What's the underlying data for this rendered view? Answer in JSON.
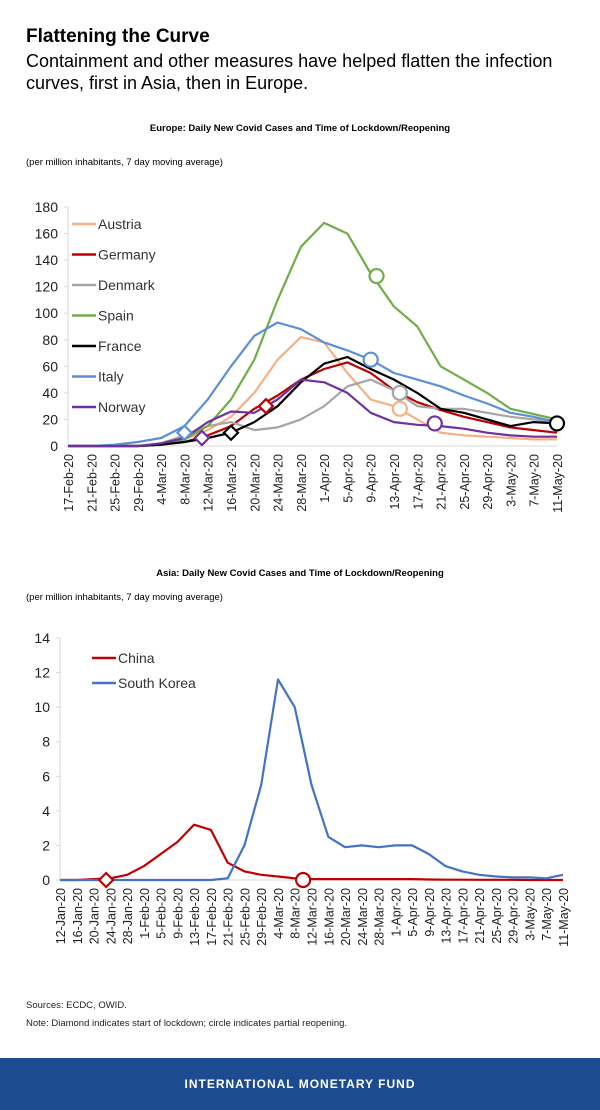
{
  "header": {
    "title": "Flattening the Curve",
    "subtitle": "Containment and other measures have helped flatten the infection curves, first in Asia, then in Europe."
  },
  "chart_data": [
    {
      "type": "line",
      "title": "Europe: Daily New Covid Cases and Time of Lockdown/Reopening",
      "subtitle": "(per million inhabitants, 7 day moving average)",
      "x": [
        "17-Feb-20",
        "21-Feb-20",
        "25-Feb-20",
        "29-Feb-20",
        "4-Mar-20",
        "8-Mar-20",
        "12-Mar-20",
        "16-Mar-20",
        "20-Mar-20",
        "24-Mar-20",
        "28-Mar-20",
        "1-Apr-20",
        "5-Apr-20",
        "9-Apr-20",
        "13-Apr-20",
        "17-Apr-20",
        "21-Apr-20",
        "25-Apr-20",
        "29-Apr-20",
        "3-May-20",
        "7-May-20",
        "11-May-20"
      ],
      "series": [
        {
          "name": "Austria",
          "color": "#f4b183",
          "values": [
            0,
            0,
            0,
            0,
            1,
            5,
            12,
            22,
            40,
            65,
            82,
            78,
            55,
            35,
            30,
            20,
            10,
            8,
            7,
            6,
            5,
            5
          ]
        },
        {
          "name": "Germany",
          "color": "#c00000",
          "values": [
            0,
            0,
            0,
            0,
            1,
            3,
            8,
            15,
            28,
            38,
            50,
            58,
            63,
            55,
            42,
            33,
            27,
            22,
            18,
            14,
            12,
            10
          ]
        },
        {
          "name": "Denmark",
          "color": "#a5a5a5",
          "values": [
            0,
            0,
            0,
            0,
            2,
            8,
            15,
            18,
            12,
            14,
            20,
            30,
            45,
            50,
            42,
            30,
            28,
            28,
            25,
            22,
            20,
            18
          ]
        },
        {
          "name": "Spain",
          "color": "#70ad47",
          "values": [
            0,
            0,
            0,
            0,
            1,
            5,
            15,
            35,
            65,
            110,
            150,
            168,
            160,
            130,
            105,
            90,
            60,
            50,
            40,
            28,
            24,
            20
          ]
        },
        {
          "name": "France",
          "color": "#000000",
          "values": [
            0,
            0,
            0,
            0,
            1,
            3,
            6,
            10,
            18,
            30,
            48,
            62,
            67,
            58,
            50,
            40,
            28,
            25,
            20,
            15,
            18,
            17
          ]
        },
        {
          "name": "Italy",
          "color": "#5b8fd6",
          "values": [
            0,
            0,
            1,
            3,
            6,
            15,
            35,
            60,
            83,
            93,
            88,
            78,
            72,
            65,
            55,
            50,
            45,
            38,
            32,
            25,
            22,
            18
          ]
        },
        {
          "name": "Norway",
          "color": "#7030a0",
          "values": [
            0,
            0,
            0,
            0,
            2,
            6,
            18,
            26,
            25,
            35,
            50,
            48,
            40,
            25,
            18,
            16,
            15,
            13,
            10,
            8,
            7,
            7
          ]
        }
      ],
      "markers": [
        {
          "series": 5,
          "x": "8-Mar-20",
          "value": 10,
          "shape": "diamond"
        },
        {
          "series": 6,
          "x": "11-Mar-20",
          "value": 6,
          "shape": "diamond"
        },
        {
          "series": 4,
          "x": "16-Mar-20",
          "value": 10,
          "shape": "diamond"
        },
        {
          "series": 1,
          "x": "22-Mar-20",
          "value": 30,
          "shape": "diamond"
        },
        {
          "series": 3,
          "x": "10-Apr-20",
          "value": 128,
          "shape": "circle"
        },
        {
          "series": 5,
          "x": "9-Apr-20",
          "value": 65,
          "shape": "circle"
        },
        {
          "series": 2,
          "x": "14-Apr-20",
          "value": 40,
          "shape": "circle"
        },
        {
          "series": 0,
          "x": "14-Apr-20",
          "value": 28,
          "shape": "circle"
        },
        {
          "series": 6,
          "x": "20-Apr-20",
          "value": 17,
          "shape": "circle"
        },
        {
          "series": 4,
          "x": "11-May-20",
          "value": 17,
          "shape": "circle"
        }
      ],
      "ylim": [
        0,
        180
      ],
      "yticks": [
        0,
        20,
        40,
        60,
        80,
        100,
        120,
        140,
        160,
        180
      ],
      "grid": false,
      "legend": "upper left"
    },
    {
      "type": "line",
      "title": "Asia: Daily New Covid Cases and Time of Lockdown/Reopening",
      "subtitle": "(per million inhabitants, 7 day moving average)",
      "x": [
        "12-Jan-20",
        "16-Jan-20",
        "20-Jan-20",
        "24-Jan-20",
        "28-Jan-20",
        "1-Feb-20",
        "5-Feb-20",
        "9-Feb-20",
        "13-Feb-20",
        "17-Feb-20",
        "21-Feb-20",
        "25-Feb-20",
        "29-Feb-20",
        "4-Mar-20",
        "8-Mar-20",
        "12-Mar-20",
        "16-Mar-20",
        "20-Mar-20",
        "24-Mar-20",
        "28-Mar-20",
        "1-Apr-20",
        "5-Apr-20",
        "9-Apr-20",
        "13-Apr-20",
        "17-Apr-20",
        "21-Apr-20",
        "25-Apr-20",
        "29-Apr-20",
        "3-May-20",
        "7-May-20",
        "11-May-20"
      ],
      "series": [
        {
          "name": "China",
          "color": "#c00000",
          "values": [
            0,
            0,
            0.05,
            0.1,
            0.3,
            0.8,
            1.5,
            2.2,
            3.2,
            2.9,
            1.0,
            0.5,
            0.3,
            0.2,
            0.1,
            0.05,
            0.05,
            0.05,
            0.05,
            0.05,
            0.05,
            0.05,
            0.03,
            0.02,
            0.02,
            0.01,
            0.01,
            0.01,
            0,
            0,
            0
          ]
        },
        {
          "name": "South Korea",
          "color": "#4472c4",
          "values": [
            0,
            0,
            0,
            0,
            0,
            0,
            0,
            0,
            0,
            0,
            0.1,
            2,
            5.5,
            11.6,
            10,
            5.5,
            2.5,
            1.9,
            2,
            1.9,
            2,
            2,
            1.5,
            0.8,
            0.5,
            0.3,
            0.2,
            0.15,
            0.15,
            0.1,
            0.3
          ]
        }
      ],
      "markers": [
        {
          "series": 0,
          "x": "23-Jan-20",
          "value": 0,
          "shape": "diamond"
        },
        {
          "series": 0,
          "x": "10-Mar-20",
          "value": 0,
          "shape": "circle"
        }
      ],
      "ylim": [
        0,
        14
      ],
      "yticks": [
        0,
        2,
        4,
        6,
        8,
        10,
        12,
        14
      ],
      "grid": false,
      "legend": "upper left"
    }
  ],
  "footer": {
    "sources": "Sources: ECDC, OWID.",
    "note": "Note: Diamond indicates start of lockdown; circle indicates partial reopening.",
    "brand": "INTERNATIONAL MONETARY FUND"
  }
}
